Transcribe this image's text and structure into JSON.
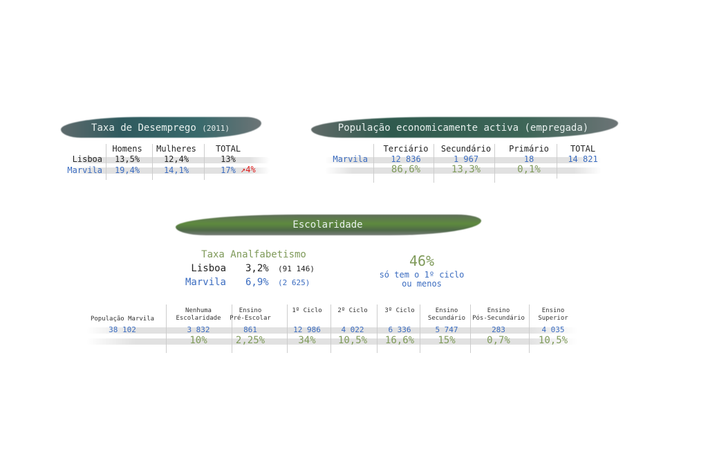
{
  "unemployment": {
    "title": "Taxa de Desemprego",
    "year": "(2011)",
    "headers": [
      "Homens",
      "Mulheres",
      "TOTAL"
    ],
    "rows": [
      {
        "label": "Lisboa",
        "values": [
          "13,5%",
          "12,4%",
          "13%"
        ]
      },
      {
        "label": "Marvila",
        "values": [
          "19,4%",
          "14,1%",
          "17%"
        ]
      }
    ],
    "delta": "4%",
    "delta_icon": "arrow-up-right-icon",
    "delta_color": "#e02020"
  },
  "active": {
    "title": "População economicamente activa (empregada)",
    "row_label": "Marvila",
    "headers": [
      "Terciário",
      "Secundário",
      "Primário",
      "TOTAL"
    ],
    "counts": [
      "12 836",
      "1 967",
      "18",
      "14 821"
    ],
    "percents": [
      "86,6%",
      "13,3%",
      "0,1%"
    ]
  },
  "school": {
    "title": "Escolaridade",
    "illit_title": "Taxa Analfabetismo",
    "illit": [
      {
        "label": "Lisboa",
        "pct": "3,2%",
        "count": "(91 146)"
      },
      {
        "label": "Marvila",
        "pct": "6,9%",
        "count": "(2 625)"
      }
    ],
    "highlight": {
      "value": "46%",
      "line1": "só tem o 1º ciclo",
      "line2": "ou menos"
    },
    "population": {
      "label": "População Marvila",
      "value": "38 102"
    },
    "levels": [
      {
        "h1": "Nenhuma",
        "h2": "Escolaridade",
        "count": "3 832",
        "pct": "10%"
      },
      {
        "h1": "Ensino",
        "h2": "Pré-Escolar",
        "count": "861",
        "pct": "2,25%"
      },
      {
        "h1": "",
        "h2": "1º Ciclo",
        "count": "12 986",
        "pct": "34%"
      },
      {
        "h1": "",
        "h2": "2º Ciclo",
        "count": "4 022",
        "pct": "10,5%"
      },
      {
        "h1": "",
        "h2": "3º Ciclo",
        "count": "6 336",
        "pct": "16,6%"
      },
      {
        "h1": "Ensino",
        "h2": "Secundário",
        "count": "5 747",
        "pct": "15%"
      },
      {
        "h1": "Ensino",
        "h2": "Pós-Secundário",
        "count": "283",
        "pct": "0,7%"
      },
      {
        "h1": "Ensino",
        "h2": "Superior",
        "count": "4 035",
        "pct": "10,5%"
      }
    ]
  },
  "colors": {
    "blue": "#3b6cc0",
    "green": "#7f9a5a",
    "red": "#e02020"
  }
}
